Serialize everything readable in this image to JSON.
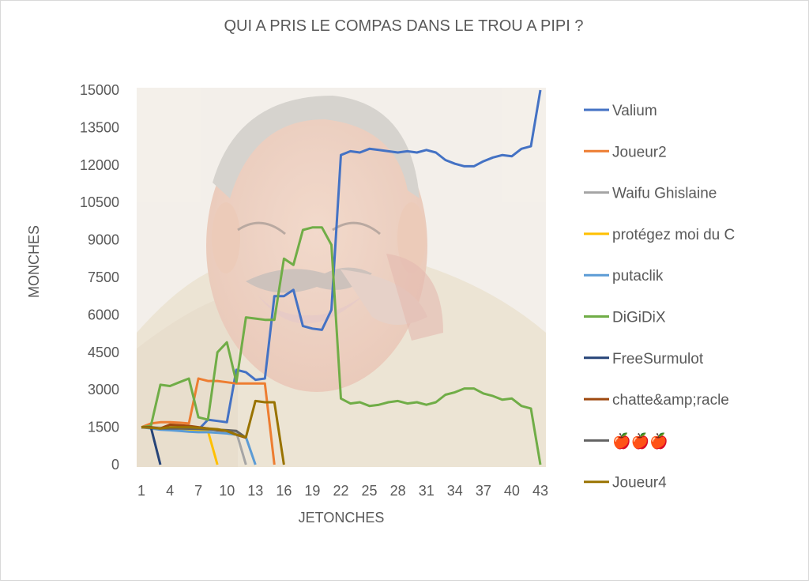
{
  "chart_data": {
    "type": "line",
    "title": "QUI A PRIS LE COMPAS DANS LE TROU A PIPI ?",
    "xlabel": "JETONCHES",
    "ylabel": "MONCHES",
    "x_ticks": [
      1,
      4,
      7,
      10,
      13,
      16,
      19,
      22,
      25,
      28,
      31,
      34,
      37,
      40,
      43
    ],
    "xlim": [
      1,
      43
    ],
    "y_ticks": [
      0,
      1500,
      3000,
      4500,
      6000,
      7500,
      9000,
      10500,
      12000,
      13500,
      15000
    ],
    "ylim": [
      0,
      15000
    ],
    "grid": false,
    "legend_position": "right",
    "background_image": "laughing-man-photo",
    "series": [
      {
        "name": "Valium",
        "color": "#4472c4",
        "x": [
          1,
          2,
          3,
          4,
          5,
          6,
          7,
          8,
          9,
          10,
          11,
          12,
          13,
          14,
          15,
          16,
          17,
          18,
          19,
          20,
          21,
          22,
          23,
          24,
          25,
          26,
          27,
          28,
          29,
          30,
          31,
          32,
          33,
          34,
          35,
          36,
          37,
          38,
          39,
          40,
          41,
          42,
          43
        ],
        "values": [
          1500,
          1480,
          1450,
          1430,
          1420,
          1410,
          1400,
          1800,
          1750,
          1700,
          3800,
          3700,
          3400,
          3450,
          6750,
          6750,
          7000,
          5550,
          5450,
          5400,
          6200,
          12400,
          12550,
          12500,
          12650,
          12600,
          12550,
          12500,
          12550,
          12500,
          12600,
          12500,
          12200,
          12050,
          11950,
          11950,
          12150,
          12300,
          12400,
          12350,
          12650,
          12750,
          15000
        ]
      },
      {
        "name": "Joueur2",
        "color": "#ed7d31",
        "x": [
          1,
          2,
          3,
          4,
          5,
          6,
          7,
          8,
          9,
          10,
          11,
          12,
          13,
          14,
          15
        ],
        "values": [
          1500,
          1650,
          1700,
          1700,
          1680,
          1650,
          3450,
          3350,
          3350,
          3300,
          3250,
          3250,
          3250,
          3250,
          0
        ]
      },
      {
        "name": "Waifu Ghislaine",
        "color": "#a5a5a5",
        "x": [
          1,
          2,
          3,
          4,
          5,
          6,
          7,
          8,
          9,
          10,
          11,
          12
        ],
        "values": [
          1500,
          1500,
          1480,
          1460,
          1450,
          1430,
          1420,
          1400,
          1380,
          1350,
          1300,
          0
        ]
      },
      {
        "name": "protégez moi du C",
        "color": "#ffc000",
        "x": [
          1,
          2,
          3,
          4,
          5,
          6,
          7,
          8,
          9
        ],
        "values": [
          1500,
          1480,
          1460,
          1440,
          1420,
          1400,
          1380,
          1350,
          0
        ]
      },
      {
        "name": "putaclik",
        "color": "#5b9bd5",
        "x": [
          1,
          2,
          3,
          4,
          5,
          6,
          7,
          8,
          9,
          10,
          11,
          12,
          13
        ],
        "values": [
          1500,
          1450,
          1400,
          1380,
          1350,
          1320,
          1300,
          1300,
          1280,
          1250,
          1200,
          1100,
          0
        ]
      },
      {
        "name": "DiGiDiX",
        "color": "#70ad47",
        "x": [
          1,
          2,
          3,
          4,
          5,
          6,
          7,
          8,
          9,
          10,
          11,
          12,
          13,
          14,
          15,
          16,
          17,
          18,
          19,
          20,
          21,
          22,
          23,
          24,
          25,
          26,
          27,
          28,
          29,
          30,
          31,
          32,
          33,
          34,
          35,
          36,
          37,
          38,
          39,
          40,
          41,
          42,
          43
        ],
        "values": [
          1500,
          1550,
          3200,
          3150,
          3300,
          3450,
          1900,
          1800,
          4500,
          4900,
          3300,
          5900,
          5850,
          5800,
          5800,
          8250,
          8000,
          9400,
          9500,
          9500,
          8800,
          2650,
          2450,
          2500,
          2350,
          2400,
          2500,
          2550,
          2450,
          2500,
          2400,
          2500,
          2800,
          2900,
          3050,
          3050,
          2850,
          2750,
          2600,
          2650,
          2350,
          2250,
          0
        ]
      },
      {
        "name": "FreeSurmulot",
        "color": "#264478",
        "x": [
          1,
          2,
          3
        ],
        "values": [
          1500,
          1500,
          0
        ]
      },
      {
        "name": "chatte&amp;racle",
        "color": "#9e480e",
        "x": [
          1,
          2,
          3,
          4,
          5,
          6,
          7,
          8,
          9,
          10,
          11,
          12
        ],
        "values": [
          1500,
          1500,
          1450,
          1600,
          1580,
          1550,
          1500,
          1450,
          1380,
          1350,
          1200,
          1080
        ]
      },
      {
        "name": "🍎🍎🍎",
        "color": "#636363",
        "x": [
          1,
          2,
          3,
          4,
          5,
          6,
          7,
          8,
          9,
          10,
          11,
          12
        ],
        "values": [
          1500,
          1480,
          1450,
          1450,
          1450,
          1440,
          1430,
          1420,
          1400,
          1380,
          1350,
          1080
        ]
      },
      {
        "name": "Joueur4",
        "color": "#997300",
        "x": [
          1,
          2,
          3,
          4,
          5,
          6,
          7,
          8,
          9,
          10,
          11,
          12,
          13,
          14,
          15,
          16
        ],
        "values": [
          1500,
          1480,
          1450,
          1500,
          1500,
          1500,
          1480,
          1450,
          1420,
          1350,
          1200,
          1100,
          2550,
          2500,
          2500,
          0
        ]
      }
    ]
  }
}
